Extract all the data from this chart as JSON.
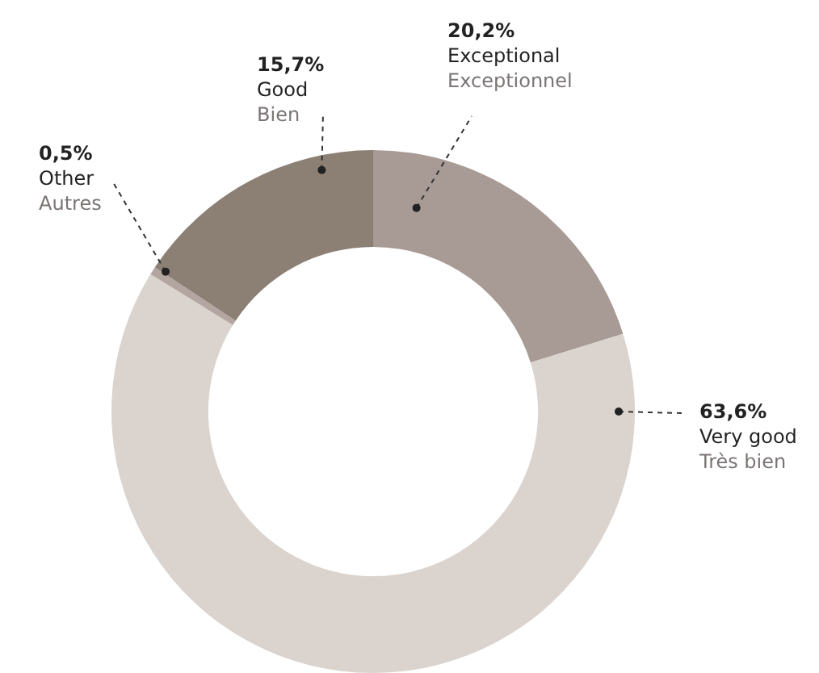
{
  "chart_data": {
    "type": "donut",
    "categories": [
      "Exceptional\nExceptionnel",
      "Very good\nTrès bien",
      "Other\nAutres",
      "Good\nBien"
    ],
    "values": [
      20.2,
      63.6,
      0.5,
      15.7
    ],
    "value_labels": [
      "20,2%",
      "63,6%",
      "0,5%",
      "15,7%"
    ],
    "colors": [
      "#a89a94",
      "#dbd3cd",
      "#b3a6a0",
      "#8c7f74"
    ],
    "legend": false
  }
}
